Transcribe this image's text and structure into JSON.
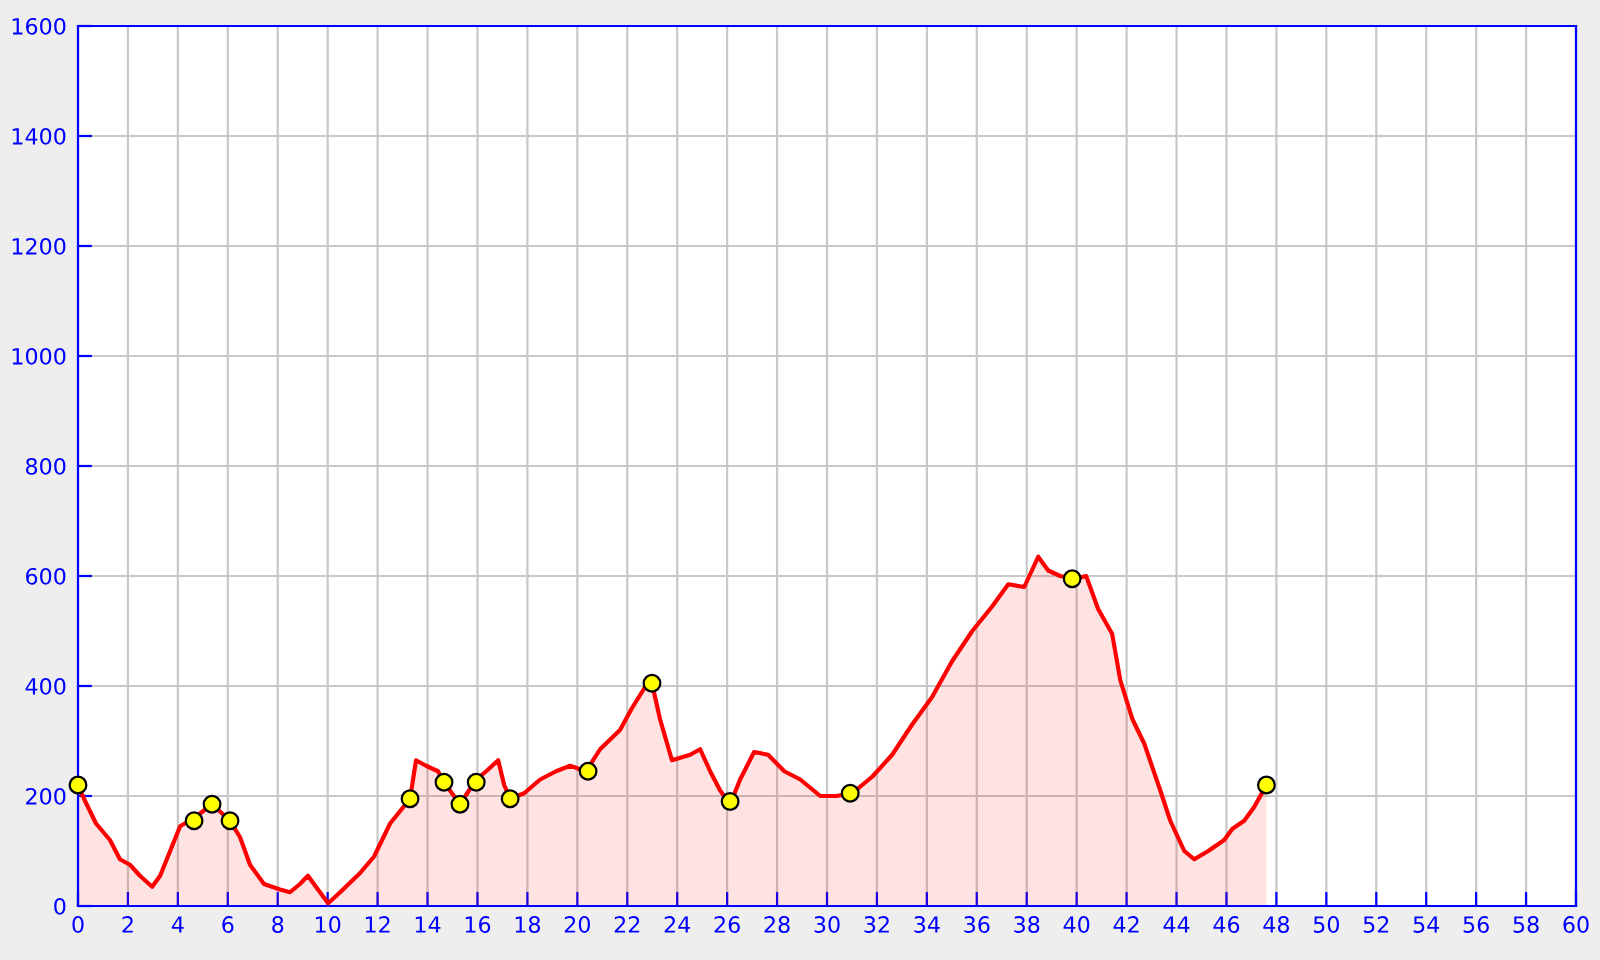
{
  "chart_data": {
    "type": "area",
    "series": [
      {
        "color": "#ff0000",
        "marker": "none",
        "x": [
          0,
          0.24,
          0.72,
          1.28,
          1.68,
          2.08,
          2.48,
          2.97,
          3.29,
          3.69,
          4.09,
          4.65,
          5.37,
          6.09,
          6.49,
          6.89,
          7.45,
          8.09,
          8.49,
          8.89,
          9.21,
          9.53,
          10.02,
          10.5,
          11.3,
          11.86,
          12.5,
          13.3,
          13.54,
          13.94,
          14.42,
          14.66,
          15.3,
          15.95,
          16.35,
          16.83,
          17.07,
          17.31,
          17.87,
          18.51,
          19.15,
          19.71,
          20.35,
          20.91,
          21.71,
          22.19,
          22.67,
          22.99,
          23.31,
          23.79,
          24.52,
          24.92,
          25.32,
          25.72,
          26.12,
          26.52,
          27.08,
          27.64,
          28.29,
          28.93,
          29.73,
          30.37,
          31.01,
          31.81,
          32.61,
          33.41,
          34.21,
          35.01,
          35.82,
          36.62,
          37.26,
          37.9,
          38.46,
          38.86,
          39.34,
          39.9,
          40.38,
          40.86,
          41.42,
          41.75,
          42.23,
          42.71,
          43.35,
          43.75,
          44.31,
          44.71,
          45.27,
          45.91,
          46.23,
          46.71,
          47.11,
          47.6
        ],
        "values": [
          220,
          195,
          150,
          120,
          85,
          75,
          55,
          35,
          55,
          100,
          145,
          160,
          185,
          155,
          125,
          75,
          40,
          30,
          25,
          40,
          55,
          35,
          5,
          25,
          60,
          90,
          150,
          195,
          265,
          255,
          245,
          225,
          185,
          230,
          245,
          265,
          220,
          195,
          205,
          230,
          245,
          255,
          245,
          285,
          320,
          360,
          395,
          405,
          340,
          265,
          275,
          285,
          245,
          210,
          185,
          230,
          280,
          275,
          245,
          230,
          200,
          200,
          205,
          235,
          275,
          330,
          380,
          445,
          500,
          545,
          585,
          580,
          635,
          610,
          600,
          595,
          600,
          540,
          495,
          410,
          340,
          295,
          210,
          155,
          100,
          85,
          100,
          120,
          140,
          155,
          180,
          220
        ]
      },
      {
        "type": "scatter",
        "color": "#ffff00",
        "marker": "circle",
        "x": [
          0,
          4.65,
          5.37,
          6.09,
          13.3,
          14.66,
          15.3,
          15.95,
          17.31,
          20.43,
          22.99,
          26.12,
          30.93,
          39.82,
          47.6
        ],
        "values": [
          220,
          155,
          185,
          155,
          195,
          225,
          185,
          225,
          195,
          245,
          405,
          190,
          205,
          595,
          220
        ]
      }
    ],
    "xlim": [
      0,
      60
    ],
    "xticks": [
      0,
      2,
      4,
      6,
      8,
      10,
      12,
      14,
      16,
      18,
      20,
      22,
      24,
      26,
      28,
      30,
      32,
      34,
      36,
      38,
      40,
      42,
      44,
      46,
      48,
      50,
      52,
      54,
      56,
      58,
      60
    ],
    "ylim": [
      0,
      1600
    ],
    "yticks": [
      0,
      200,
      400,
      600,
      800,
      1000,
      1200,
      1400,
      1600
    ],
    "grid": true
  }
}
